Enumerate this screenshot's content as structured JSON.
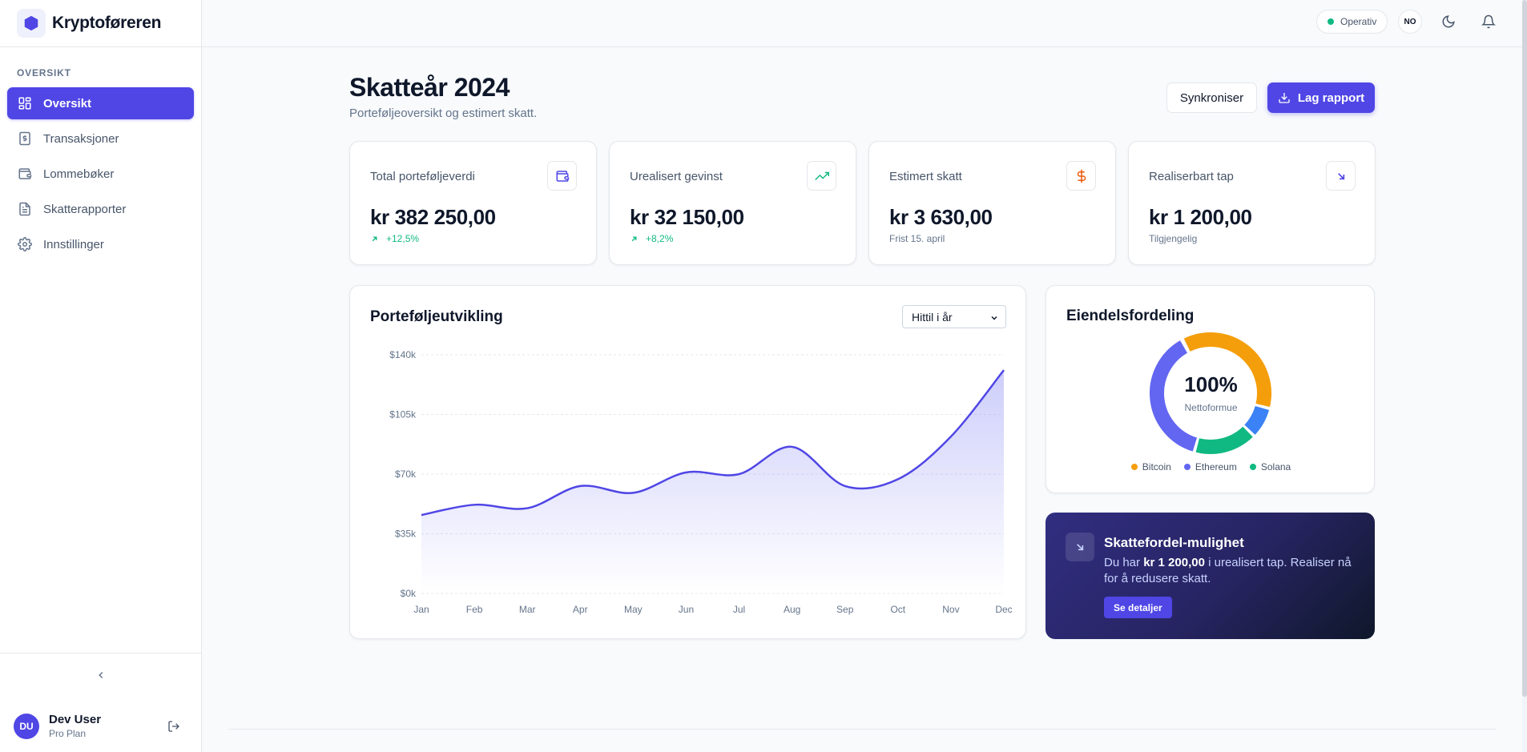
{
  "brand": {
    "name": "Kryptoføreren"
  },
  "sidebar": {
    "section_label": "OVERSIKT",
    "items": [
      {
        "label": "Oversikt",
        "icon": "dashboard-icon",
        "active": true
      },
      {
        "label": "Transaksjoner",
        "icon": "dollar-receipt-icon",
        "active": false
      },
      {
        "label": "Lommebøker",
        "icon": "wallet-icon",
        "active": false
      },
      {
        "label": "Skatterapporter",
        "icon": "document-icon",
        "active": false
      },
      {
        "label": "Innstillinger",
        "icon": "gear-icon",
        "active": false
      }
    ],
    "user": {
      "initials": "DU",
      "name": "Dev User",
      "plan": "Pro Plan"
    }
  },
  "topbar": {
    "status": "Operativ",
    "status_color": "#10b981",
    "language": "NO"
  },
  "header": {
    "title": "Skatteår 2024",
    "subtitle": "Porteføljeoversikt og estimert skatt.",
    "sync_label": "Synkroniser",
    "report_label": "Lag rapport"
  },
  "stats": [
    {
      "label": "Total porteføljeverdi",
      "value": "kr 382 250,00",
      "sub": "+12,5%",
      "icon": "wallet-icon"
    },
    {
      "label": "Urealisert gevinst",
      "value": "kr 32 150,00",
      "sub": "+8,2%",
      "icon": "trending-up-icon"
    },
    {
      "label": "Estimert skatt",
      "value": "kr 3 630,00",
      "sub": "Frist 15. april",
      "icon": "dollar-icon"
    },
    {
      "label": "Realiserbart tap",
      "value": "kr 1 200,00",
      "sub": "Tilgjengelig",
      "icon": "arrow-down-right-icon"
    }
  ],
  "portfolio": {
    "title": "Porteføljeutvikling",
    "range": "Hittil i år"
  },
  "chart_data": {
    "type": "area",
    "categories": [
      "Jan",
      "Feb",
      "Mar",
      "Apr",
      "May",
      "Jun",
      "Jul",
      "Aug",
      "Sep",
      "Oct",
      "Nov",
      "Dec"
    ],
    "values": [
      46000,
      52000,
      50000,
      63000,
      59000,
      71000,
      70000,
      86000,
      63000,
      67000,
      92000,
      131000
    ],
    "yticks": [
      "$0k",
      "$35k",
      "$70k",
      "$105k",
      "$140k"
    ],
    "ylim": [
      0,
      140000
    ],
    "grid": true,
    "line_color": "#4f46e5"
  },
  "allocation": {
    "title": "Eiendelsfordeling",
    "center_value": "100%",
    "center_label": "Nettoformue",
    "segments": [
      {
        "name": "Bitcoin",
        "color": "#f59e0b"
      },
      {
        "name": "Ethereum",
        "color": "#6366f1"
      },
      {
        "name": "Solana",
        "color": "#10b981"
      }
    ]
  },
  "tip": {
    "title": "Skattefordel-mulighet",
    "text_before": "Du har ",
    "amount": "kr 1 200,00",
    "text_after": " i urealisert tap. Realiser nå for å redusere skatt.",
    "button": "Se detaljer"
  }
}
